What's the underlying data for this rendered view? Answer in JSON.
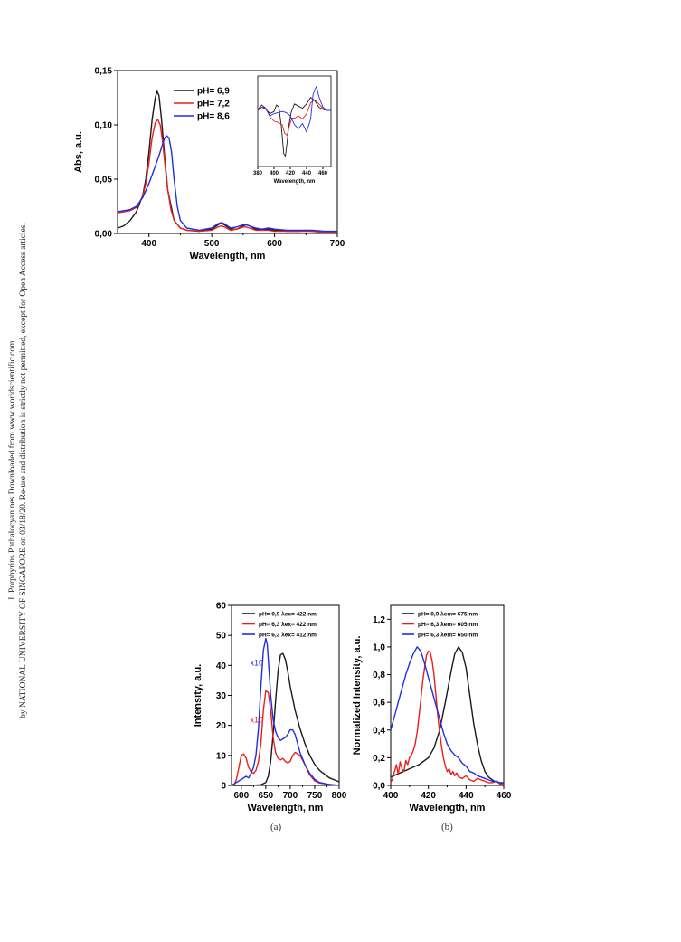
{
  "sidebar": {
    "line1": "J. Porphyrins Phthalocyanines Downloaded from www.worldscientific.com",
    "line2": "by NATIONAL UNIVERSITY OF SINGAPORE on 03/18/20. Re-use and distribution is strictly not permitted, except for Open Access articles."
  },
  "captions": {
    "a": "(a)",
    "b": "(b)"
  },
  "chart_data": [
    {
      "type": "line",
      "title": "",
      "xlabel": "Wavelength, nm",
      "ylabel": "Abs, a.u.",
      "xlim": [
        350,
        700
      ],
      "ylim": [
        0,
        0.15
      ],
      "xticks": [
        400,
        500,
        600,
        700
      ],
      "yticks": [
        0.0,
        0.05,
        0.1,
        0.15
      ],
      "ytick_labels": [
        "0,00",
        "0,05",
        "0,10",
        "0,15"
      ],
      "legend_position": "top-right",
      "grid": false,
      "series": [
        {
          "name": "pH= 6,9",
          "color": "#1a1a1a",
          "x": [
            350,
            360,
            370,
            380,
            390,
            395,
            400,
            405,
            410,
            413,
            416,
            420,
            425,
            430,
            440,
            450,
            460,
            480,
            500,
            510,
            515,
            520,
            530,
            540,
            550,
            555,
            560,
            570,
            580,
            590,
            600,
            620,
            640,
            650,
            660,
            680,
            700
          ],
          "y": [
            0.005,
            0.007,
            0.012,
            0.02,
            0.035,
            0.05,
            0.075,
            0.105,
            0.125,
            0.131,
            0.127,
            0.105,
            0.07,
            0.04,
            0.012,
            0.005,
            0.003,
            0.002,
            0.004,
            0.008,
            0.01,
            0.008,
            0.004,
            0.004,
            0.007,
            0.008,
            0.007,
            0.004,
            0.003,
            0.004,
            0.003,
            0.002,
            0.002,
            0.003,
            0.002,
            0.001,
            0.001
          ]
        },
        {
          "name": "pH= 7,2",
          "color": "#e8201c",
          "x": [
            350,
            360,
            370,
            380,
            390,
            395,
            400,
            405,
            410,
            414,
            418,
            422,
            426,
            430,
            435,
            440,
            450,
            460,
            480,
            500,
            510,
            515,
            520,
            530,
            540,
            550,
            555,
            560,
            570,
            580,
            590,
            600,
            620,
            640,
            650,
            660,
            680,
            700
          ],
          "y": [
            0.019,
            0.02,
            0.021,
            0.024,
            0.034,
            0.046,
            0.065,
            0.088,
            0.102,
            0.105,
            0.1,
            0.083,
            0.06,
            0.04,
            0.022,
            0.012,
            0.005,
            0.003,
            0.002,
            0.003,
            0.006,
            0.007,
            0.006,
            0.003,
            0.004,
            0.006,
            0.006,
            0.005,
            0.003,
            0.003,
            0.003,
            0.002,
            0.002,
            0.002,
            0.002,
            0.002,
            0.001,
            0.001
          ]
        },
        {
          "name": "pH= 8,6",
          "color": "#1f2ee6",
          "x": [
            350,
            360,
            370,
            380,
            390,
            400,
            405,
            410,
            415,
            420,
            425,
            428,
            432,
            436,
            440,
            445,
            450,
            460,
            480,
            500,
            510,
            515,
            520,
            530,
            540,
            550,
            555,
            560,
            570,
            580,
            590,
            600,
            620,
            640,
            650,
            660,
            680,
            700
          ],
          "y": [
            0.02,
            0.021,
            0.022,
            0.025,
            0.033,
            0.046,
            0.054,
            0.062,
            0.07,
            0.079,
            0.088,
            0.09,
            0.088,
            0.075,
            0.05,
            0.025,
            0.012,
            0.005,
            0.003,
            0.005,
            0.009,
            0.01,
            0.009,
            0.005,
            0.006,
            0.008,
            0.008,
            0.007,
            0.005,
            0.004,
            0.005,
            0.004,
            0.003,
            0.003,
            0.003,
            0.003,
            0.002,
            0.002
          ]
        }
      ]
    },
    {
      "type": "line",
      "title": "",
      "xlabel": "Wavelength, nm",
      "ylabel": "",
      "xlim": [
        380,
        470
      ],
      "xticks": [
        380,
        400,
        420,
        440,
        460
      ],
      "yaxis": "none",
      "inset": true,
      "series": [
        {
          "name": "pH= 6,9",
          "color": "#1a1a1a",
          "x": [
            380,
            385,
            390,
            395,
            400,
            403,
            406,
            409,
            412,
            414,
            416,
            418,
            421,
            425,
            430,
            435,
            440,
            445,
            450,
            455,
            460,
            465,
            470
          ],
          "y": [
            0.0,
            0.3,
            0.1,
            -0.3,
            -0.1,
            0.5,
            0.3,
            -1.5,
            -4.0,
            -4.2,
            -3.0,
            -1.5,
            -0.2,
            0.6,
            0.4,
            0.2,
            0.6,
            1.2,
            0.9,
            0.3,
            0.1,
            0.0,
            0.0
          ]
        },
        {
          "name": "pH= 7,2",
          "color": "#e8201c",
          "x": [
            380,
            385,
            390,
            395,
            400,
            405,
            410,
            413,
            416,
            419,
            422,
            426,
            430,
            435,
            440,
            445,
            450,
            455,
            460,
            465,
            470
          ],
          "y": [
            0.0,
            0.5,
            0.2,
            -0.6,
            -1.0,
            -1.1,
            -1.3,
            -2.1,
            -2.3,
            -1.4,
            -0.7,
            -0.7,
            -0.5,
            -0.8,
            -0.3,
            0.7,
            1.0,
            0.6,
            0.2,
            0.0,
            0.0
          ]
        },
        {
          "name": "pH= 8,6",
          "color": "#1f2ee6",
          "x": [
            380,
            385,
            390,
            395,
            400,
            405,
            410,
            415,
            420,
            425,
            430,
            435,
            440,
            445,
            448,
            452,
            455,
            460,
            465,
            470
          ],
          "y": [
            0.1,
            0.5,
            0.1,
            -0.5,
            -0.3,
            -0.2,
            -0.1,
            -0.2,
            -0.5,
            -1.3,
            -1.7,
            -1.2,
            -2.0,
            -0.8,
            1.5,
            2.2,
            1.3,
            0.3,
            0.0,
            0.0
          ]
        }
      ]
    },
    {
      "type": "line",
      "label": "(a)",
      "xlabel": "Wavelength, nm",
      "ylabel": "Intensity, a.u.",
      "xlim": [
        580,
        800
      ],
      "ylim": [
        0,
        60
      ],
      "xticks": [
        600,
        650,
        700,
        750,
        800
      ],
      "yticks": [
        0,
        10,
        20,
        30,
        40,
        50,
        60
      ],
      "legend_position": "top-right",
      "annotations": [
        {
          "text": "x10",
          "color": "#1f2ee6",
          "x": 618,
          "y": 40
        },
        {
          "text": "x10",
          "color": "#e8201c",
          "x": 618,
          "y": 21
        }
      ],
      "series": [
        {
          "name": "pH= 0,9 λex= 422 nm",
          "color": "#1a1a1a",
          "x": [
            580,
            620,
            640,
            650,
            655,
            660,
            665,
            670,
            675,
            680,
            685,
            690,
            695,
            700,
            710,
            720,
            730,
            740,
            750,
            760,
            780,
            800
          ],
          "y": [
            0.0,
            0.0,
            0.2,
            1.0,
            3.0,
            8.0,
            17.0,
            28.0,
            38.0,
            43.5,
            44.0,
            42.0,
            38.0,
            33.0,
            25.0,
            19.0,
            14.0,
            10.0,
            7.0,
            5.0,
            2.5,
            1.2
          ]
        },
        {
          "name": "pH= 6,3 λex= 422 nm",
          "color": "#e8201c",
          "x": [
            580,
            585,
            590,
            595,
            600,
            605,
            610,
            615,
            620,
            625,
            630,
            635,
            640,
            645,
            650,
            655,
            660,
            665,
            670,
            675,
            680,
            685,
            690,
            695,
            700,
            705,
            710,
            715,
            720,
            730,
            740,
            750,
            760,
            780,
            800
          ],
          "y": [
            0.0,
            0.0,
            2.0,
            6.0,
            10.0,
            10.5,
            9.0,
            6.0,
            4.5,
            4.0,
            5.0,
            8.0,
            14.0,
            25.0,
            31.5,
            31.0,
            25.0,
            16.0,
            11.0,
            9.0,
            8.5,
            9.0,
            8.0,
            7.5,
            8.0,
            10.0,
            11.0,
            10.5,
            10.0,
            7.0,
            3.5,
            1.5,
            0.8,
            0.3,
            0.0
          ]
        },
        {
          "name": "pH= 6,3 λex= 412 nm",
          "color": "#1f2ee6",
          "x": [
            580,
            590,
            600,
            610,
            615,
            620,
            625,
            630,
            635,
            640,
            645,
            650,
            653,
            656,
            660,
            665,
            670,
            675,
            680,
            685,
            690,
            695,
            700,
            705,
            710,
            715,
            720,
            730,
            740,
            750,
            760,
            780,
            800
          ],
          "y": [
            0.0,
            1.0,
            2.0,
            3.0,
            2.5,
            4.0,
            6.0,
            10.0,
            19.0,
            33.0,
            45.0,
            49.0,
            47.0,
            40.0,
            30.0,
            22.0,
            18.0,
            16.0,
            15.0,
            15.5,
            16.0,
            17.0,
            18.5,
            18.5,
            17.0,
            14.0,
            11.0,
            7.0,
            4.0,
            2.0,
            1.0,
            0.3,
            0.0
          ]
        }
      ]
    },
    {
      "type": "line",
      "label": "(b)",
      "xlabel": "Wavelength, nm",
      "ylabel": "Normalized Intensity, a.u.",
      "xlim": [
        400,
        460
      ],
      "ylim": [
        0,
        1.3
      ],
      "xticks": [
        400,
        420,
        440,
        460
      ],
      "yticks": [
        0.0,
        0.2,
        0.4,
        0.6,
        0.8,
        1.0,
        1.2
      ],
      "ytick_labels": [
        "0,0",
        "0,2",
        "0,4",
        "0,6",
        "0,8",
        "1,0",
        "1,2"
      ],
      "legend_position": "top-right",
      "series": [
        {
          "name": "pH= 0,9 λem= 675 nm",
          "color": "#1a1a1a",
          "x": [
            400,
            405,
            410,
            415,
            420,
            423,
            426,
            429,
            432,
            434,
            436,
            438,
            440,
            442,
            444,
            446,
            448,
            450,
            452,
            455,
            458,
            460
          ],
          "y": [
            0.06,
            0.09,
            0.12,
            0.15,
            0.2,
            0.27,
            0.4,
            0.6,
            0.82,
            0.95,
            1.0,
            0.96,
            0.85,
            0.65,
            0.45,
            0.3,
            0.18,
            0.1,
            0.06,
            0.03,
            0.02,
            0.01
          ]
        },
        {
          "name": "pH= 6,3 λem= 605 nm",
          "color": "#e8201c",
          "x": [
            400,
            401,
            402,
            403,
            404,
            405,
            406,
            407,
            408,
            409,
            410,
            411,
            412,
            413,
            414,
            415,
            416,
            417,
            418,
            419,
            420,
            421,
            422,
            423,
            424,
            425,
            426,
            427,
            428,
            429,
            430,
            431,
            432,
            433,
            434,
            435,
            436,
            438,
            440,
            442,
            444,
            446,
            448,
            450,
            452,
            454,
            456,
            458,
            460
          ],
          "y": [
            0.02,
            0.05,
            0.1,
            0.15,
            0.08,
            0.17,
            0.12,
            0.1,
            0.18,
            0.15,
            0.2,
            0.22,
            0.25,
            0.3,
            0.38,
            0.5,
            0.62,
            0.75,
            0.85,
            0.94,
            0.97,
            0.96,
            0.9,
            0.8,
            0.65,
            0.5,
            0.38,
            0.28,
            0.2,
            0.14,
            0.1,
            0.12,
            0.08,
            0.1,
            0.07,
            0.09,
            0.06,
            0.05,
            0.07,
            0.04,
            0.03,
            0.05,
            0.04,
            0.03,
            0.02,
            0.02,
            0.03,
            0.01,
            0.01
          ]
        },
        {
          "name": "pH= 6,3 λem= 650 nm",
          "color": "#1f2ee6",
          "x": [
            400,
            402,
            404,
            406,
            408,
            410,
            412,
            414,
            416,
            418,
            420,
            422,
            424,
            426,
            428,
            430,
            432,
            434,
            436,
            438,
            440,
            442,
            444,
            446,
            448,
            450,
            452,
            454,
            456,
            458,
            460
          ],
          "y": [
            0.4,
            0.5,
            0.6,
            0.7,
            0.8,
            0.88,
            0.95,
            1.0,
            0.97,
            0.88,
            0.78,
            0.68,
            0.58,
            0.48,
            0.38,
            0.3,
            0.25,
            0.22,
            0.2,
            0.16,
            0.14,
            0.1,
            0.09,
            0.07,
            0.06,
            0.05,
            0.04,
            0.03,
            0.03,
            0.02,
            0.02
          ]
        }
      ]
    }
  ]
}
